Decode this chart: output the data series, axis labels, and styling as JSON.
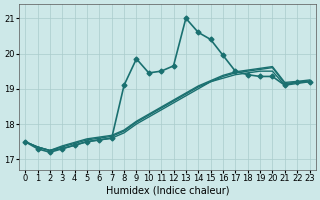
{
  "xlabel": "Humidex (Indice chaleur)",
  "ylabel": "",
  "xlim": [
    -0.5,
    23.5
  ],
  "ylim": [
    16.7,
    21.4
  ],
  "bg_color": "#cde8e8",
  "grid_color": "#aacccc",
  "line_color": "#1a7070",
  "xticks": [
    0,
    1,
    2,
    3,
    4,
    5,
    6,
    7,
    8,
    9,
    10,
    11,
    12,
    13,
    14,
    15,
    16,
    17,
    18,
    19,
    20,
    21,
    22,
    23
  ],
  "yticks": [
    17,
    18,
    19,
    20,
    21
  ],
  "series": [
    {
      "x": [
        0,
        1,
        2,
        3,
        4,
        5,
        6,
        7,
        8,
        9,
        10,
        11,
        12,
        13,
        14,
        15,
        16,
        17,
        18,
        19,
        20,
        21,
        22,
        23
      ],
      "y": [
        17.5,
        17.3,
        17.2,
        17.3,
        17.4,
        17.5,
        17.55,
        17.6,
        19.1,
        19.85,
        19.45,
        19.5,
        19.65,
        21.0,
        20.6,
        20.4,
        19.95,
        19.5,
        19.4,
        19.35,
        19.35,
        19.1,
        19.2,
        19.2
      ],
      "marker": "D",
      "markersize": 2.5,
      "linewidth": 1.2
    },
    {
      "x": [
        0,
        1,
        2,
        3,
        4,
        5,
        6,
        7,
        8,
        9,
        10,
        11,
        12,
        13,
        14,
        15,
        16,
        17,
        18,
        19,
        20,
        21,
        22,
        23
      ],
      "y": [
        17.5,
        17.35,
        17.25,
        17.3,
        17.4,
        17.5,
        17.55,
        17.6,
        17.75,
        18.0,
        18.2,
        18.4,
        18.6,
        18.8,
        19.0,
        19.2,
        19.3,
        19.4,
        19.45,
        19.5,
        19.5,
        19.1,
        19.15,
        19.2
      ],
      "marker": null,
      "markersize": 0,
      "linewidth": 1.0
    },
    {
      "x": [
        0,
        1,
        2,
        3,
        4,
        5,
        6,
        7,
        8,
        9,
        10,
        11,
        12,
        13,
        14,
        15,
        16,
        17,
        18,
        19,
        20,
        21,
        22,
        23
      ],
      "y": [
        17.5,
        17.35,
        17.25,
        17.35,
        17.45,
        17.55,
        17.6,
        17.65,
        17.8,
        18.05,
        18.25,
        18.45,
        18.65,
        18.85,
        19.05,
        19.2,
        19.35,
        19.45,
        19.5,
        19.55,
        19.6,
        19.15,
        19.18,
        19.22
      ],
      "marker": null,
      "markersize": 0,
      "linewidth": 1.0
    },
    {
      "x": [
        0,
        1,
        2,
        3,
        4,
        5,
        6,
        7,
        8,
        9,
        10,
        11,
        12,
        13,
        14,
        15,
        16,
        17,
        18,
        19,
        20,
        21,
        22,
        23
      ],
      "y": [
        17.5,
        17.35,
        17.25,
        17.38,
        17.48,
        17.58,
        17.63,
        17.68,
        17.83,
        18.08,
        18.28,
        18.48,
        18.68,
        18.88,
        19.08,
        19.23,
        19.38,
        19.48,
        19.53,
        19.58,
        19.63,
        19.18,
        19.21,
        19.25
      ],
      "marker": null,
      "markersize": 0,
      "linewidth": 1.0
    }
  ]
}
